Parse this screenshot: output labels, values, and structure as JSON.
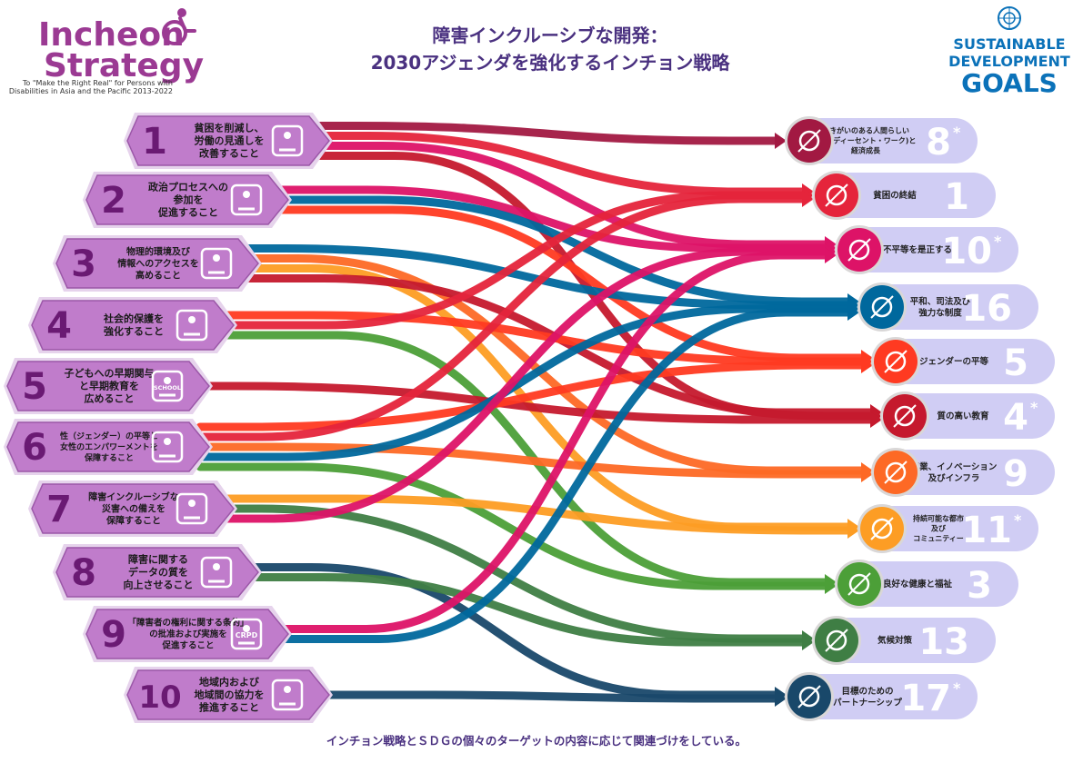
{
  "logo": {
    "line1": "Incheon",
    "line2": "Strategy",
    "tagline1": "To \"Make the Right Real\" for Persons with",
    "tagline2": "Disabilities in Asia and the Pacific 2013-2022"
  },
  "title": {
    "line1": "障害インクルーシブな開発：",
    "line2": "2030アジェンダを強化するインチョン戦略"
  },
  "sdg_logo": {
    "line1": "SUSTAINABLE",
    "line2": "DEVELOPMENT",
    "line3": "GOALS"
  },
  "footer": "インチョン戦略とＳＤＧの個々のターゲットの内容に応じて関連づけをしている。",
  "colors": {
    "incheon_purple": "#9b3a93",
    "goal_fill": "#c07ccb",
    "sdg_bar": "#d0cdf4",
    "sdg_text": "#0b72b9"
  },
  "incheon_goals": [
    {
      "num": "1",
      "lines": [
        "貧困を削減し、",
        "労働の見通しを",
        "改善すること"
      ],
      "icon": "worker-icon"
    },
    {
      "num": "2",
      "lines": [
        "政治プロセスへの",
        "参加を",
        "促進すること"
      ],
      "icon": "government-icon"
    },
    {
      "num": "3",
      "lines": [
        "物理的環境及び",
        "情報へのアクセスを",
        "高めること"
      ],
      "icon": "bus-access-icon"
    },
    {
      "num": "4",
      "lines": [
        "社会的保護を",
        "強化すること"
      ],
      "icon": "family-care-icon"
    },
    {
      "num": "5",
      "lines": [
        "子どもへの早期関与",
        "と早期教育を",
        "広めること"
      ],
      "icon": "school-icon",
      "icon_label": "SCHOOL"
    },
    {
      "num": "6",
      "lines": [
        "性（ジェンダー）の平等と",
        "女性のエンパワーメントを",
        "保障すること"
      ],
      "icon": "gender-scale-icon"
    },
    {
      "num": "7",
      "lines": [
        "障害インクルーシブな",
        "災害への備えを",
        "保障すること"
      ],
      "icon": "wave-icon"
    },
    {
      "num": "8",
      "lines": [
        "障害に関する",
        "データの質を",
        "向上させること"
      ],
      "icon": "data-icon"
    },
    {
      "num": "9",
      "lines": [
        "「障害者の権利に関する条約」",
        "の批准および実施を",
        "促進すること"
      ],
      "icon": "crpd-icon",
      "icon_label": "CRPD"
    },
    {
      "num": "10",
      "lines": [
        "地域内および",
        "地域間の協力を",
        "推進すること"
      ],
      "icon": "handshake-icon"
    }
  ],
  "sdgs": [
    {
      "num": "8",
      "star": true,
      "lines": [
        "働きがいのある人間らしい",
        "雇用(ディーセント・ワーク)と",
        "経済成長"
      ],
      "color": "#a21942",
      "icon": "growth-chart-icon"
    },
    {
      "num": "1",
      "star": false,
      "lines": [
        "貧困の終結"
      ],
      "color": "#e5243b",
      "icon": "family-icon"
    },
    {
      "num": "10",
      "star": true,
      "lines": [
        "不平等を是正する"
      ],
      "color": "#dd1367",
      "icon": "equality-icon"
    },
    {
      "num": "16",
      "star": false,
      "lines": [
        "平和、司法及び",
        "強力な制度"
      ],
      "color": "#00689d",
      "icon": "dove-icon"
    },
    {
      "num": "5",
      "star": false,
      "lines": [
        "ジェンダーの平等"
      ],
      "color": "#ff3a21",
      "icon": "gender-icon"
    },
    {
      "num": "4",
      "star": true,
      "lines": [
        "質の高い教育"
      ],
      "color": "#c5192d",
      "icon": "book-icon"
    },
    {
      "num": "9",
      "star": false,
      "lines": [
        "産業、イノベーション",
        "及びインフラ"
      ],
      "color": "#fd6925",
      "icon": "cubes-icon"
    },
    {
      "num": "11",
      "star": true,
      "lines": [
        "持続可能な都市",
        "及び",
        "コミュニティー"
      ],
      "color": "#fd9d24",
      "icon": "city-icon"
    },
    {
      "num": "3",
      "star": false,
      "lines": [
        "良好な健康と福祉"
      ],
      "color": "#4c9f38",
      "icon": "heartbeat-icon"
    },
    {
      "num": "13",
      "star": false,
      "lines": [
        "気候対策"
      ],
      "color": "#3f7e44",
      "icon": "eye-earth-icon"
    },
    {
      "num": "17",
      "star": true,
      "lines": [
        "目標のための",
        "パートナーシップ"
      ],
      "color": "#19486a",
      "icon": "partnership-icon"
    }
  ],
  "links": [
    {
      "goal": 1,
      "sdg": 8,
      "color": "#a21942"
    },
    {
      "goal": 1,
      "sdg": 1,
      "color": "#e5243b"
    },
    {
      "goal": 1,
      "sdg": 10,
      "color": "#dd1367"
    },
    {
      "goal": 1,
      "sdg": 4,
      "color": "#c5192d"
    },
    {
      "goal": 2,
      "sdg": 10,
      "color": "#dd1367"
    },
    {
      "goal": 2,
      "sdg": 16,
      "color": "#00689d"
    },
    {
      "goal": 2,
      "sdg": 5,
      "color": "#ff3a21"
    },
    {
      "goal": 3,
      "sdg": 16,
      "color": "#00689d"
    },
    {
      "goal": 3,
      "sdg": 9,
      "color": "#fd6925"
    },
    {
      "goal": 3,
      "sdg": 11,
      "color": "#fd9d24"
    },
    {
      "goal": 3,
      "sdg": 4,
      "color": "#c5192d"
    },
    {
      "goal": 4,
      "sdg": 5,
      "color": "#ff3a21"
    },
    {
      "goal": 4,
      "sdg": 1,
      "color": "#e5243b"
    },
    {
      "goal": 4,
      "sdg": 3,
      "color": "#4c9f38"
    },
    {
      "goal": 5,
      "sdg": 4,
      "color": "#c5192d"
    },
    {
      "goal": 6,
      "sdg": 5,
      "color": "#ff3a21"
    },
    {
      "goal": 6,
      "sdg": 1,
      "color": "#e5243b"
    },
    {
      "goal": 6,
      "sdg": 9,
      "color": "#fd6925"
    },
    {
      "goal": 6,
      "sdg": 16,
      "color": "#00689d"
    },
    {
      "goal": 6,
      "sdg": 3,
      "color": "#4c9f38"
    },
    {
      "goal": 7,
      "sdg": 11,
      "color": "#fd9d24"
    },
    {
      "goal": 7,
      "sdg": 13,
      "color": "#3f7e44"
    },
    {
      "goal": 7,
      "sdg": 10,
      "color": "#dd1367"
    },
    {
      "goal": 8,
      "sdg": 17,
      "color": "#19486a"
    },
    {
      "goal": 8,
      "sdg": 13,
      "color": "#3f7e44"
    },
    {
      "goal": 9,
      "sdg": 10,
      "color": "#dd1367"
    },
    {
      "goal": 9,
      "sdg": 16,
      "color": "#00689d"
    },
    {
      "goal": 10,
      "sdg": 17,
      "color": "#19486a"
    }
  ]
}
